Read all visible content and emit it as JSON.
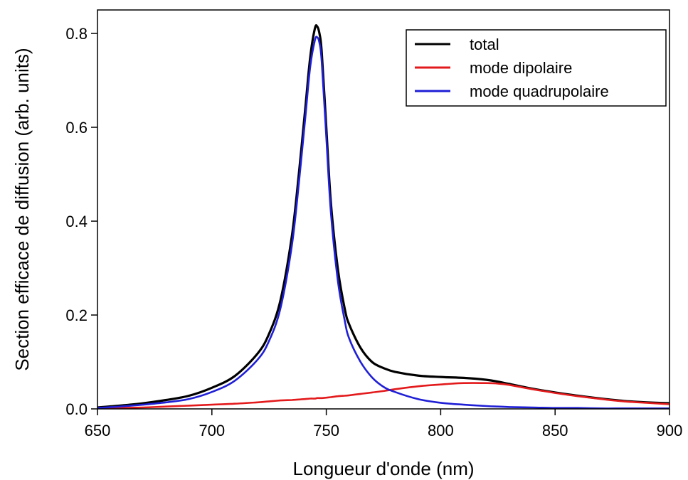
{
  "chart_data": {
    "type": "line",
    "xlabel": "Longueur d'onde (nm)",
    "ylabel": "Section efficace de diffusion (arb. units)",
    "xlim": [
      650,
      900
    ],
    "ylim": [
      0,
      0.85
    ],
    "xticks": [
      650,
      700,
      750,
      800,
      850,
      900
    ],
    "xtick_labels": [
      "650",
      "700",
      "750",
      "800",
      "850",
      "900"
    ],
    "yticks": [
      0.0,
      0.2,
      0.4,
      0.6,
      0.8
    ],
    "ytick_labels": [
      "0.0",
      "0.2",
      "0.4",
      "0.6",
      "0.8"
    ],
    "grid": false,
    "legend_position": "top-right",
    "x": [
      650,
      660,
      670,
      680,
      690,
      700,
      710,
      720,
      725,
      730,
      735,
      738,
      741,
      743,
      745,
      746,
      747,
      748,
      750,
      752,
      755,
      758,
      760,
      765,
      770,
      775,
      780,
      790,
      800,
      810,
      820,
      825,
      830,
      840,
      850,
      860,
      870,
      880,
      890,
      900
    ],
    "series": [
      {
        "name": "total",
        "color": "#000000",
        "values": [
          0.003,
          0.007,
          0.012,
          0.019,
          0.028,
          0.045,
          0.07,
          0.118,
          0.16,
          0.232,
          0.37,
          0.5,
          0.65,
          0.75,
          0.81,
          0.815,
          0.8,
          0.76,
          0.6,
          0.44,
          0.3,
          0.215,
          0.18,
          0.13,
          0.1,
          0.087,
          0.079,
          0.071,
          0.068,
          0.066,
          0.062,
          0.058,
          0.053,
          0.043,
          0.035,
          0.028,
          0.022,
          0.017,
          0.014,
          0.012
        ]
      },
      {
        "name": "mode dipolaire",
        "color": "#e31a1c",
        "values": [
          0.001,
          0.002,
          0.003,
          0.005,
          0.007,
          0.009,
          0.011,
          0.014,
          0.016,
          0.018,
          0.019,
          0.02,
          0.021,
          0.022,
          0.022,
          0.023,
          0.023,
          0.023,
          0.024,
          0.025,
          0.027,
          0.028,
          0.029,
          0.032,
          0.035,
          0.038,
          0.042,
          0.048,
          0.052,
          0.055,
          0.055,
          0.054,
          0.051,
          0.042,
          0.034,
          0.027,
          0.021,
          0.016,
          0.013,
          0.01
        ]
      },
      {
        "name": "mode quadrupolaire",
        "color": "#1f1fd6",
        "values": [
          0.002,
          0.005,
          0.009,
          0.014,
          0.021,
          0.036,
          0.06,
          0.105,
          0.145,
          0.215,
          0.35,
          0.48,
          0.63,
          0.73,
          0.785,
          0.792,
          0.78,
          0.74,
          0.58,
          0.42,
          0.275,
          0.19,
          0.15,
          0.1,
          0.067,
          0.047,
          0.036,
          0.021,
          0.013,
          0.009,
          0.006,
          0.005,
          0.004,
          0.003,
          0.002,
          0.002,
          0.001,
          0.001,
          0.001,
          0.001
        ]
      }
    ]
  }
}
